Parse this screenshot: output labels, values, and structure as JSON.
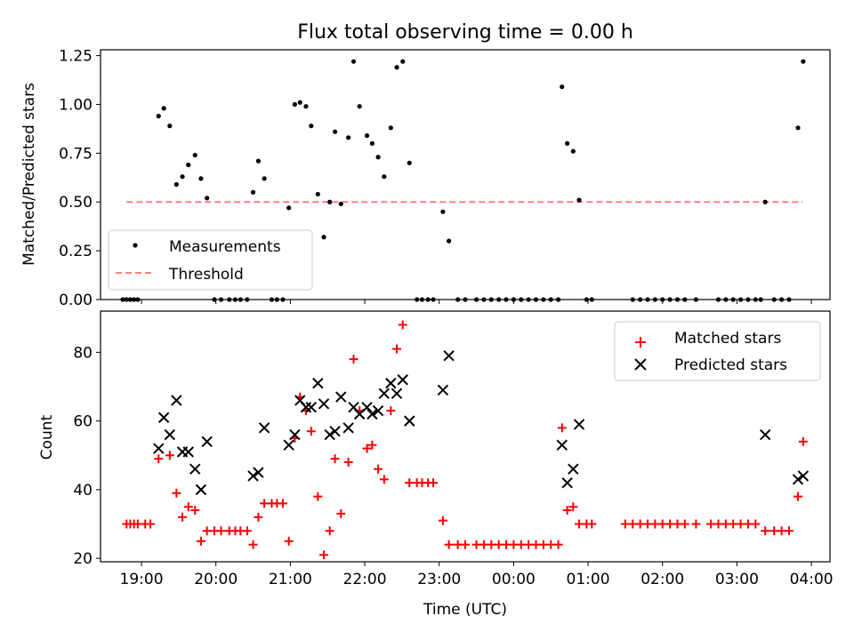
{
  "title": "Flux total observing time = 0.00 h",
  "colors": {
    "measure": "#000000",
    "threshold": "#ff7f7f",
    "matched": "#ff0000",
    "predicted": "#000000"
  },
  "chart_data": [
    {
      "type": "scatter",
      "ylabel": "Matched/Predicted stars",
      "xlim": [
        -0.55,
        9.25
      ],
      "ylim": [
        0,
        1.28
      ],
      "yticks": [
        0,
        0.25,
        0.5,
        0.75,
        1.0,
        1.25
      ],
      "ytick_labels": [
        "0.00",
        "0.25",
        "0.50",
        "0.75",
        "1.00",
        "1.25"
      ],
      "grid": false,
      "legend_position": "lower-left",
      "series": [
        {
          "name": "Measurements",
          "marker": "dot",
          "points": [
            [
              -0.25,
              0
            ],
            [
              -0.2,
              0
            ],
            [
              -0.15,
              0
            ],
            [
              -0.1,
              0
            ],
            [
              -0.05,
              0
            ],
            [
              0.23,
              0.94
            ],
            [
              0.3,
              0.98
            ],
            [
              0.38,
              0.89
            ],
            [
              0.47,
              0.59
            ],
            [
              0.55,
              0.63
            ],
            [
              0.63,
              0.69
            ],
            [
              0.72,
              0.74
            ],
            [
              0.8,
              0.62
            ],
            [
              0.88,
              0.52
            ],
            [
              0.98,
              0
            ],
            [
              1.07,
              0
            ],
            [
              1.18,
              0
            ],
            [
              1.26,
              0
            ],
            [
              1.33,
              0
            ],
            [
              1.42,
              0
            ],
            [
              1.5,
              0.55
            ],
            [
              1.57,
              0.71
            ],
            [
              1.65,
              0.62
            ],
            [
              1.75,
              0
            ],
            [
              1.82,
              0
            ],
            [
              1.9,
              0
            ],
            [
              1.98,
              0.47
            ],
            [
              2.06,
              1.0
            ],
            [
              2.13,
              1.01
            ],
            [
              2.21,
              0.99
            ],
            [
              2.28,
              0.89
            ],
            [
              2.37,
              0.54
            ],
            [
              2.45,
              0.32
            ],
            [
              2.53,
              0.5
            ],
            [
              2.6,
              0.86
            ],
            [
              2.68,
              0.49
            ],
            [
              2.78,
              0.83
            ],
            [
              2.85,
              1.22
            ],
            [
              2.93,
              0.99
            ],
            [
              3.03,
              0.84
            ],
            [
              3.1,
              0.8
            ],
            [
              3.18,
              0.73
            ],
            [
              3.26,
              0.63
            ],
            [
              3.35,
              0.88
            ],
            [
              3.43,
              1.19
            ],
            [
              3.51,
              1.22
            ],
            [
              3.6,
              0.7
            ],
            [
              3.7,
              0
            ],
            [
              3.77,
              0
            ],
            [
              3.85,
              0
            ],
            [
              3.92,
              0
            ],
            [
              4.05,
              0.45
            ],
            [
              4.13,
              0.3
            ],
            [
              4.25,
              0
            ],
            [
              4.35,
              0
            ],
            [
              4.5,
              0
            ],
            [
              4.6,
              0
            ],
            [
              4.7,
              0
            ],
            [
              4.8,
              0
            ],
            [
              4.9,
              0
            ],
            [
              5.0,
              0
            ],
            [
              5.1,
              0
            ],
            [
              5.2,
              0
            ],
            [
              5.3,
              0
            ],
            [
              5.4,
              0
            ],
            [
              5.5,
              0
            ],
            [
              5.6,
              0
            ],
            [
              5.65,
              1.09
            ],
            [
              5.72,
              0.8
            ],
            [
              5.8,
              0.76
            ],
            [
              5.88,
              0.51
            ],
            [
              5.98,
              0
            ],
            [
              6.05,
              0
            ],
            [
              6.6,
              0
            ],
            [
              6.7,
              0
            ],
            [
              6.8,
              0
            ],
            [
              6.9,
              0
            ],
            [
              7.0,
              0
            ],
            [
              7.1,
              0
            ],
            [
              7.2,
              0
            ],
            [
              7.3,
              0
            ],
            [
              7.45,
              0
            ],
            [
              7.75,
              0
            ],
            [
              7.85,
              0
            ],
            [
              7.95,
              0
            ],
            [
              8.05,
              0
            ],
            [
              8.15,
              0
            ],
            [
              8.25,
              0
            ],
            [
              8.32,
              0
            ],
            [
              8.38,
              0.5
            ],
            [
              8.5,
              0
            ],
            [
              8.6,
              0
            ],
            [
              8.7,
              0
            ],
            [
              8.82,
              0.88
            ],
            [
              8.89,
              1.22
            ]
          ]
        },
        {
          "name": "Threshold",
          "style": "dashed",
          "points": [
            [
              -0.2,
              0.5
            ],
            [
              8.88,
              0.5
            ]
          ]
        }
      ]
    },
    {
      "type": "scatter",
      "xlabel": "Time (UTC)",
      "ylabel": "Count",
      "xlim": [
        -0.55,
        9.25
      ],
      "ylim": [
        19,
        92
      ],
      "yticks": [
        20,
        40,
        60,
        80
      ],
      "xticks": [
        0,
        1,
        2,
        3,
        4,
        5,
        6,
        7,
        8,
        9
      ],
      "xtick_labels": [
        "19:00",
        "20:00",
        "21:00",
        "22:00",
        "23:00",
        "00:00",
        "01:00",
        "02:00",
        "03:00",
        "04:00"
      ],
      "grid": false,
      "legend_position": "upper-right",
      "series": [
        {
          "name": "Matched stars",
          "marker": "plus",
          "points": [
            [
              -0.2,
              30
            ],
            [
              -0.15,
              30
            ],
            [
              -0.1,
              30
            ],
            [
              -0.05,
              30
            ],
            [
              0.05,
              30
            ],
            [
              0.12,
              30
            ],
            [
              0.23,
              49
            ],
            [
              0.38,
              50
            ],
            [
              0.47,
              39
            ],
            [
              0.55,
              32
            ],
            [
              0.63,
              35
            ],
            [
              0.72,
              34
            ],
            [
              0.8,
              25
            ],
            [
              0.88,
              28
            ],
            [
              0.98,
              28
            ],
            [
              1.07,
              28
            ],
            [
              1.18,
              28
            ],
            [
              1.26,
              28
            ],
            [
              1.33,
              28
            ],
            [
              1.42,
              28
            ],
            [
              1.5,
              24
            ],
            [
              1.57,
              32
            ],
            [
              1.65,
              36
            ],
            [
              1.75,
              36
            ],
            [
              1.82,
              36
            ],
            [
              1.9,
              36
            ],
            [
              1.98,
              25
            ],
            [
              2.06,
              55
            ],
            [
              2.13,
              67
            ],
            [
              2.21,
              63
            ],
            [
              2.28,
              57
            ],
            [
              2.37,
              38
            ],
            [
              2.45,
              21
            ],
            [
              2.53,
              28
            ],
            [
              2.6,
              49
            ],
            [
              2.68,
              33
            ],
            [
              2.78,
              48
            ],
            [
              2.85,
              78
            ],
            [
              2.93,
              63
            ],
            [
              3.03,
              52
            ],
            [
              3.1,
              53
            ],
            [
              3.18,
              46
            ],
            [
              3.26,
              43
            ],
            [
              3.35,
              63
            ],
            [
              3.43,
              81
            ],
            [
              3.51,
              88
            ],
            [
              3.6,
              42
            ],
            [
              3.7,
              42
            ],
            [
              3.77,
              42
            ],
            [
              3.85,
              42
            ],
            [
              3.92,
              42
            ],
            [
              4.05,
              31
            ],
            [
              4.13,
              24
            ],
            [
              4.25,
              24
            ],
            [
              4.35,
              24
            ],
            [
              4.5,
              24
            ],
            [
              4.6,
              24
            ],
            [
              4.7,
              24
            ],
            [
              4.8,
              24
            ],
            [
              4.9,
              24
            ],
            [
              5.0,
              24
            ],
            [
              5.1,
              24
            ],
            [
              5.2,
              24
            ],
            [
              5.3,
              24
            ],
            [
              5.4,
              24
            ],
            [
              5.5,
              24
            ],
            [
              5.6,
              24
            ],
            [
              5.65,
              58
            ],
            [
              5.72,
              34
            ],
            [
              5.8,
              35
            ],
            [
              5.88,
              30
            ],
            [
              5.98,
              30
            ],
            [
              6.05,
              30
            ],
            [
              6.5,
              30
            ],
            [
              6.6,
              30
            ],
            [
              6.7,
              30
            ],
            [
              6.8,
              30
            ],
            [
              6.9,
              30
            ],
            [
              7.0,
              30
            ],
            [
              7.1,
              30
            ],
            [
              7.2,
              30
            ],
            [
              7.3,
              30
            ],
            [
              7.45,
              30
            ],
            [
              7.65,
              30
            ],
            [
              7.75,
              30
            ],
            [
              7.85,
              30
            ],
            [
              7.95,
              30
            ],
            [
              8.05,
              30
            ],
            [
              8.15,
              30
            ],
            [
              8.25,
              30
            ],
            [
              8.38,
              28
            ],
            [
              8.5,
              28
            ],
            [
              8.6,
              28
            ],
            [
              8.7,
              28
            ],
            [
              8.82,
              38
            ],
            [
              8.89,
              54
            ]
          ]
        },
        {
          "name": "Predicted stars",
          "marker": "x",
          "points": [
            [
              0.23,
              52
            ],
            [
              0.3,
              61
            ],
            [
              0.38,
              56
            ],
            [
              0.47,
              66
            ],
            [
              0.55,
              51
            ],
            [
              0.63,
              51
            ],
            [
              0.72,
              46
            ],
            [
              0.8,
              40
            ],
            [
              0.88,
              54
            ],
            [
              1.5,
              44
            ],
            [
              1.57,
              45
            ],
            [
              1.65,
              58
            ],
            [
              1.98,
              53
            ],
            [
              2.06,
              56
            ],
            [
              2.13,
              66
            ],
            [
              2.21,
              64
            ],
            [
              2.28,
              64
            ],
            [
              2.37,
              71
            ],
            [
              2.45,
              65
            ],
            [
              2.53,
              56
            ],
            [
              2.6,
              57
            ],
            [
              2.68,
              67
            ],
            [
              2.78,
              58
            ],
            [
              2.85,
              64
            ],
            [
              2.93,
              62
            ],
            [
              3.03,
              64
            ],
            [
              3.1,
              62
            ],
            [
              3.18,
              63
            ],
            [
              3.26,
              68
            ],
            [
              3.35,
              71
            ],
            [
              3.43,
              68
            ],
            [
              3.51,
              72
            ],
            [
              3.6,
              60
            ],
            [
              4.05,
              69
            ],
            [
              4.13,
              79
            ],
            [
              5.65,
              53
            ],
            [
              5.72,
              42
            ],
            [
              5.8,
              46
            ],
            [
              5.88,
              59
            ],
            [
              8.38,
              56
            ],
            [
              8.82,
              43
            ],
            [
              8.89,
              44
            ]
          ]
        }
      ]
    }
  ]
}
